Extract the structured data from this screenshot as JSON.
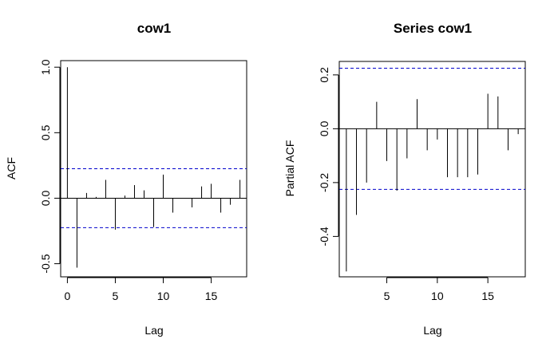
{
  "chart_data": [
    {
      "type": "bar",
      "title": "cow1",
      "xlabel": "Lag",
      "ylabel": "ACF",
      "xlim": [
        -0.7,
        18.7
      ],
      "ylim": [
        -0.6,
        1.05
      ],
      "x_ticks": [
        0,
        5,
        10,
        15
      ],
      "y_ticks": [
        -0.5,
        0.0,
        0.5,
        1.0
      ],
      "y_tick_labels": [
        "-0.5",
        "0.0",
        "0.5",
        "1.0"
      ],
      "confidence_band": 0.225,
      "x": [
        0,
        1,
        2,
        3,
        4,
        5,
        6,
        7,
        8,
        9,
        10,
        11,
        12,
        13,
        14,
        15,
        16,
        17,
        18
      ],
      "values": [
        1.0,
        -0.53,
        0.04,
        0.01,
        0.14,
        -0.24,
        0.02,
        0.1,
        0.06,
        -0.22,
        0.18,
        -0.11,
        0.0,
        -0.07,
        0.09,
        0.11,
        -0.11,
        -0.05,
        0.14
      ],
      "line_color": "#000000",
      "band_color": "#0000cc"
    },
    {
      "type": "bar",
      "title": "Series  cow1",
      "xlabel": "Lag",
      "ylabel": "Partial ACF",
      "xlim": [
        0.3,
        18.7
      ],
      "ylim": [
        -0.55,
        0.25
      ],
      "x_ticks": [
        5,
        10,
        15
      ],
      "y_ticks": [
        -0.4,
        -0.2,
        0.0,
        0.2
      ],
      "y_tick_labels": [
        "-0.4",
        "-0.2",
        "0.0",
        "0.2"
      ],
      "confidence_band": 0.225,
      "x": [
        1,
        2,
        3,
        4,
        5,
        6,
        7,
        8,
        9,
        10,
        11,
        12,
        13,
        14,
        15,
        16,
        17,
        18
      ],
      "values": [
        -0.53,
        -0.32,
        -0.2,
        0.1,
        -0.12,
        -0.23,
        -0.11,
        0.11,
        -0.08,
        -0.04,
        -0.18,
        -0.18,
        -0.18,
        -0.17,
        0.13,
        0.12,
        -0.08,
        -0.02
      ],
      "line_color": "#000000",
      "band_color": "#0000cc"
    }
  ]
}
